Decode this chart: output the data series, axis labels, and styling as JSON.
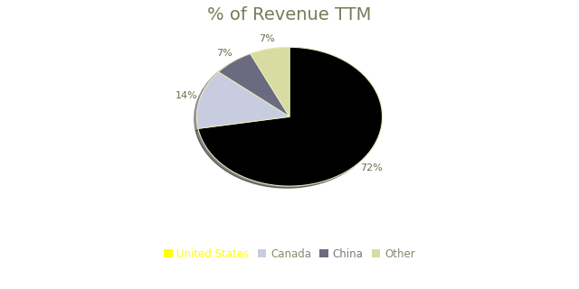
{
  "title": "% of Revenue TTM",
  "title_color": "#7a7a5a",
  "title_fontsize": 14,
  "labels": [
    "United States",
    "Canada",
    "China",
    "Other"
  ],
  "values": [
    73,
    14,
    7,
    7
  ],
  "colors": [
    "#000000",
    "#c8cce0",
    "#6a6a80",
    "#d8dca0"
  ],
  "legend_handle_colors": [
    "#ffff00",
    "#c8cce0",
    "#6a6a80",
    "#d8dca0"
  ],
  "legend_text_colors": [
    "#ffff00",
    "#8a8a6e",
    "#7a7a7a",
    "#8a8a6e"
  ],
  "background_color": "#ffffff",
  "startangle": 90,
  "pct_color": "#6b6b4e",
  "pct_fontsize": 8
}
